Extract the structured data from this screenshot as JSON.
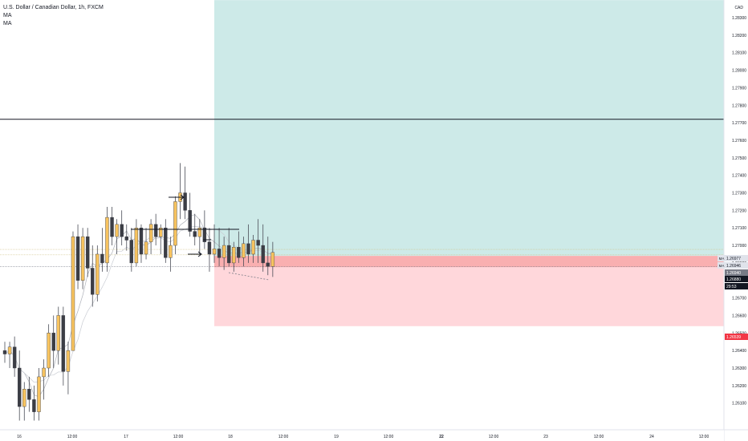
{
  "legend": {
    "symbol": "U.S. Dollar / Canadian Dollar, 1h, FXCM",
    "ma1": "MA",
    "ma2": "MA"
  },
  "chart_data": {
    "type": "candlestick",
    "currency": "CAD",
    "y_ticks": [
      "1.28300",
      "1.28200",
      "1.28100",
      "1.28000",
      "1.27900",
      "1.27800",
      "1.27700",
      "1.27600",
      "1.27500",
      "1.27400",
      "1.27300",
      "1.27200",
      "1.27100",
      "1.27000",
      "1.26900",
      "1.26800",
      "1.26700",
      "1.26600",
      "1.26500",
      "1.26400",
      "1.26300",
      "1.26200",
      "1.26100"
    ],
    "x_ticks": [
      "16",
      "12:00",
      "17",
      "12:00",
      "18",
      "12:00",
      "19",
      "12:00",
      "22",
      "12:00",
      "23",
      "12:00",
      "24",
      "12:00"
    ],
    "price_labels": [
      {
        "text": "MA",
        "value": "1.26977",
        "bg": "#e0e3eb",
        "fg": "#131722"
      },
      {
        "text": "MA",
        "value": "1.26946",
        "bg": "#e0e3eb",
        "fg": "#131722"
      },
      {
        "text": "",
        "value": "1.26940",
        "bg": "#787b86",
        "fg": "#ffffff"
      },
      {
        "text": "",
        "value": "1.26880",
        "bg": "#131722",
        "fg": "#ffffff"
      },
      {
        "text": "",
        "value": "29:53",
        "bg": "#131722",
        "fg": "#ffffff"
      },
      {
        "text": "",
        "value": "1.26539",
        "bg": "#f23645",
        "fg": "#ffffff"
      }
    ],
    "horizontal_line": 1.2772,
    "position": {
      "entry": 1.2694,
      "target": 1.284,
      "stop": 1.26539
    },
    "candles": [
      [
        1.264,
        1.2645,
        1.2633,
        1.2638
      ],
      [
        1.2638,
        1.2645,
        1.263,
        1.2642
      ],
      [
        1.2642,
        1.2648,
        1.2625,
        1.263
      ],
      [
        1.263,
        1.264,
        1.26,
        1.2608
      ],
      [
        1.2608,
        1.2622,
        1.26,
        1.2618
      ],
      [
        1.2618,
        1.2625,
        1.2605,
        1.2612
      ],
      [
        1.2612,
        1.262,
        1.26,
        1.2605
      ],
      [
        1.2605,
        1.263,
        1.26,
        1.2625
      ],
      [
        1.2625,
        1.2635,
        1.2612,
        1.263
      ],
      [
        1.263,
        1.2655,
        1.2625,
        1.265
      ],
      [
        1.265,
        1.266,
        1.263,
        1.264
      ],
      [
        1.264,
        1.2665,
        1.2632,
        1.266
      ],
      [
        1.266,
        1.2665,
        1.262,
        1.2628
      ],
      [
        1.2628,
        1.2645,
        1.2615,
        1.264
      ],
      [
        1.264,
        1.2708,
        1.264,
        1.2705
      ],
      [
        1.2705,
        1.2712,
        1.2675,
        1.268
      ],
      [
        1.268,
        1.271,
        1.2675,
        1.2705
      ],
      [
        1.2705,
        1.271,
        1.2682,
        1.2687
      ],
      [
        1.2687,
        1.27,
        1.2665,
        1.2672
      ],
      [
        1.2672,
        1.27,
        1.2668,
        1.2695
      ],
      [
        1.2695,
        1.271,
        1.2685,
        1.269
      ],
      [
        1.269,
        1.2722,
        1.2685,
        1.2716
      ],
      [
        1.2716,
        1.2722,
        1.27,
        1.2705
      ],
      [
        1.2705,
        1.2715,
        1.2695,
        1.2712
      ],
      [
        1.2712,
        1.272,
        1.27,
        1.2705
      ],
      [
        1.2705,
        1.2712,
        1.2697,
        1.2703
      ],
      [
        1.2703,
        1.271,
        1.2685,
        1.269
      ],
      [
        1.269,
        1.2715,
        1.2688,
        1.271
      ],
      [
        1.271,
        1.2712,
        1.269,
        1.2695
      ],
      [
        1.2695,
        1.271,
        1.2692,
        1.2702
      ],
      [
        1.2702,
        1.2715,
        1.2695,
        1.2712
      ],
      [
        1.2712,
        1.2718,
        1.27,
        1.2705
      ],
      [
        1.2705,
        1.2712,
        1.2695,
        1.271
      ],
      [
        1.271,
        1.2715,
        1.269,
        1.2693
      ],
      [
        1.2693,
        1.2705,
        1.2685,
        1.27
      ],
      [
        1.27,
        1.2728,
        1.2695,
        1.2725
      ],
      [
        1.2725,
        1.2747,
        1.2715,
        1.273
      ],
      [
        1.273,
        1.2745,
        1.2715,
        1.272
      ],
      [
        1.272,
        1.273,
        1.2705,
        1.2708
      ],
      [
        1.2708,
        1.2718,
        1.27,
        1.2705
      ],
      [
        1.2705,
        1.2715,
        1.2695,
        1.271
      ],
      [
        1.271,
        1.272,
        1.2698,
        1.2702
      ],
      [
        1.2702,
        1.271,
        1.2685,
        1.2695
      ],
      [
        1.2695,
        1.2712,
        1.269,
        1.2698
      ],
      [
        1.2698,
        1.271,
        1.2688,
        1.2693
      ],
      [
        1.2693,
        1.2705,
        1.2686,
        1.27
      ],
      [
        1.27,
        1.271,
        1.2688,
        1.269
      ],
      [
        1.269,
        1.2702,
        1.2685,
        1.2699
      ],
      [
        1.2699,
        1.2708,
        1.269,
        1.2693
      ],
      [
        1.2693,
        1.2705,
        1.2688,
        1.2701
      ],
      [
        1.2701,
        1.2712,
        1.269,
        1.2695
      ],
      [
        1.2695,
        1.2706,
        1.269,
        1.2703
      ],
      [
        1.2703,
        1.2715,
        1.269,
        1.27
      ],
      [
        1.27,
        1.2712,
        1.2685,
        1.269
      ],
      [
        1.269,
        1.2705,
        1.2683,
        1.2688
      ],
      [
        1.2688,
        1.2702,
        1.2682,
        1.2696
      ]
    ]
  }
}
